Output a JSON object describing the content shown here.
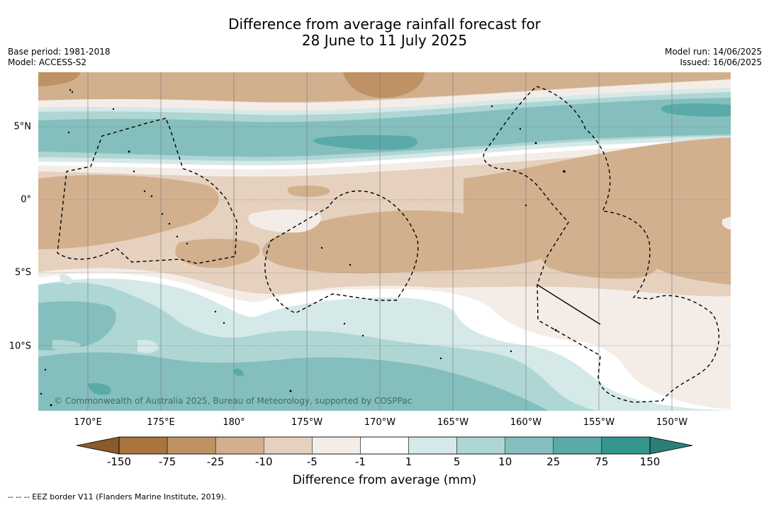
{
  "header": {
    "title_line1": "Difference from average rainfall forecast for",
    "title_line2": "28 June to 11 July 2025",
    "base_period": "Base period: 1981-2018",
    "model": "Model: ACCESS-S2",
    "model_run": "Model run: 14/06/2025",
    "issued": "Issued: 16/06/2025"
  },
  "map": {
    "lat_labels": [
      "5°N",
      "0°",
      "5°S",
      "10°S"
    ],
    "lon_labels": [
      "170°E",
      "175°E",
      "180°",
      "175°W",
      "170°W",
      "165°W",
      "160°W",
      "155°W",
      "150°W"
    ],
    "copyright": "© Commonwealth of Australia 2025, Bureau of Meteorology, supported by COSPPac"
  },
  "colorbar": {
    "title": "Difference from average (mm)",
    "ticks": [
      "-150",
      "-75",
      "-25",
      "-10",
      "-5",
      "-1",
      "1",
      "5",
      "10",
      "25",
      "75",
      "150"
    ],
    "colors": [
      "#8b5a2b",
      "#a9743d",
      "#bf9266",
      "#d2b08e",
      "#e5d1be",
      "#f4ede7",
      "#ffffff",
      "#d5e9e8",
      "#aed6d4",
      "#84bfbe",
      "#5aaaa8",
      "#35968f",
      "#2a7f79"
    ]
  },
  "footnote": "--  --  -- EEZ border V11 (Flanders Marine Institute, 2019)."
}
